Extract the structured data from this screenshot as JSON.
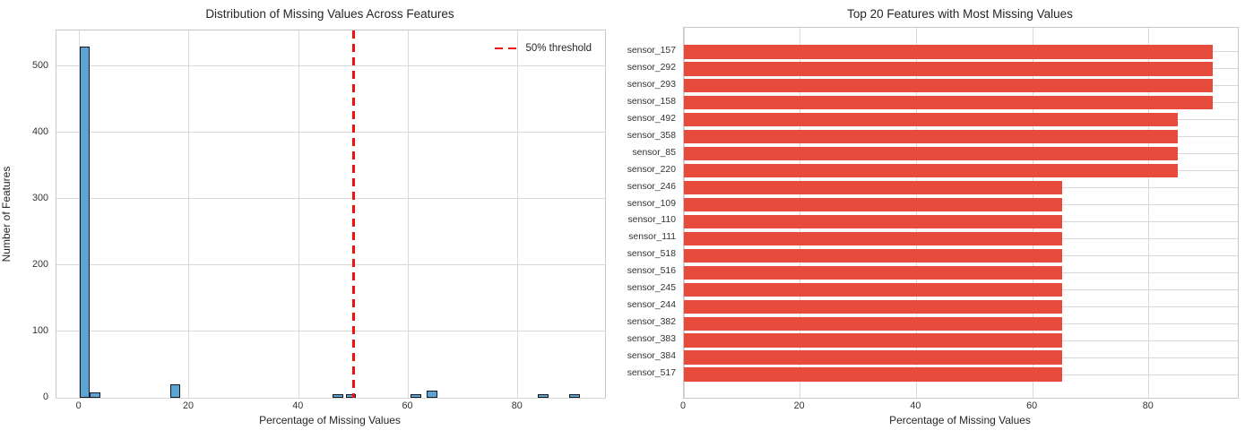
{
  "chart_data": [
    {
      "type": "bar",
      "subtype": "histogram",
      "title": "Distribution of Missing Values Across Features",
      "xlabel": "Percentage of Missing Values",
      "ylabel": "Number of Features",
      "x_ticks": [
        0,
        20,
        40,
        60,
        80
      ],
      "y_ticks": [
        0,
        100,
        200,
        300,
        400,
        500
      ],
      "xlim": [
        -4.2,
        95.9
      ],
      "ylim": [
        0,
        554
      ],
      "grid": true,
      "bin_width": 1.9,
      "bins": [
        {
          "x": 0.0,
          "count": 530
        },
        {
          "x": 1.9,
          "count": 8
        },
        {
          "x": 16.5,
          "count": 20
        },
        {
          "x": 46.2,
          "count": 5
        },
        {
          "x": 48.6,
          "count": 5
        },
        {
          "x": 60.4,
          "count": 5
        },
        {
          "x": 63.4,
          "count": 11
        },
        {
          "x": 83.7,
          "count": 5
        },
        {
          "x": 89.4,
          "count": 5
        }
      ],
      "bar_color": "#5ba4d4",
      "bar_edge_color": "#14181c",
      "threshold_line": {
        "x": 50,
        "color": "#ee1111",
        "style": "dashed",
        "label": "50% threshold"
      },
      "legend": {
        "position": "upper right",
        "entries": [
          "50% threshold"
        ]
      }
    },
    {
      "type": "bar",
      "orientation": "horizontal",
      "title": "Top 20 Features with Most Missing Values",
      "xlabel": "Percentage of Missing Values",
      "x_ticks": [
        0,
        20,
        40,
        60,
        80
      ],
      "xlim": [
        0,
        95.3
      ],
      "grid": true,
      "categories": [
        "sensor_157",
        "sensor_292",
        "sensor_293",
        "sensor_158",
        "sensor_492",
        "sensor_358",
        "sensor_85",
        "sensor_220",
        "sensor_246",
        "sensor_109",
        "sensor_110",
        "sensor_111",
        "sensor_518",
        "sensor_516",
        "sensor_245",
        "sensor_244",
        "sensor_382",
        "sensor_383",
        "sensor_384",
        "sensor_517"
      ],
      "values": [
        91,
        91,
        91,
        91,
        85,
        85,
        85,
        85,
        65,
        65,
        65,
        65,
        65,
        65,
        65,
        65,
        65,
        65,
        65,
        65
      ],
      "bar_color": "#e64b3c"
    }
  ],
  "style": {
    "grid_color": "#d9d9d9",
    "spine_color": "#c9c9c9",
    "text_color": "#262626",
    "tick_color": "#333333",
    "background": "#ffffff"
  }
}
